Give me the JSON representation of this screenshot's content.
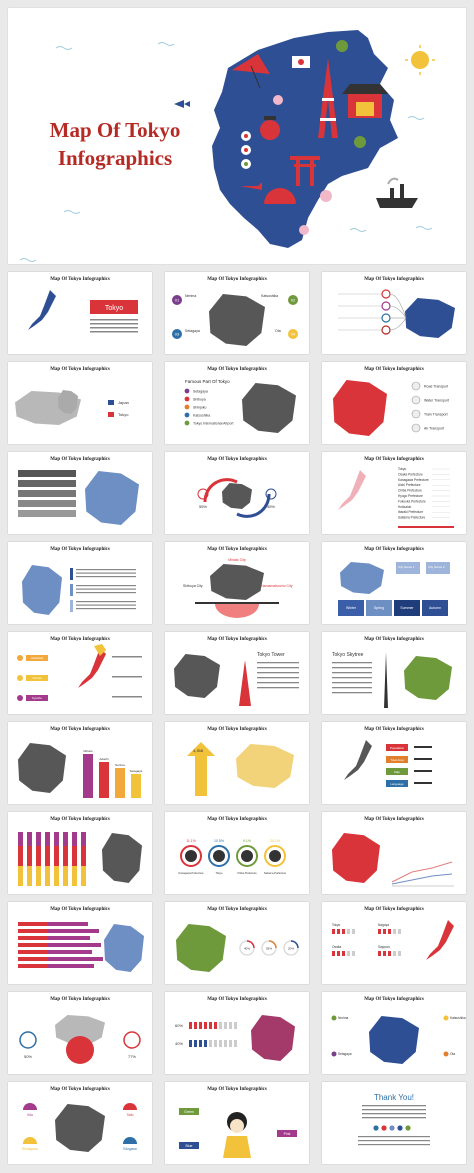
{
  "hero": {
    "title": "Map Of Tokyo Infographics"
  },
  "slide_title": "Map Of Tokyo Infographics",
  "slides": [
    {
      "id": "s1",
      "labels": [
        "Tokyo"
      ]
    },
    {
      "id": "s2",
      "labels": [
        "Nerima",
        "Katsushika",
        "Setagaya",
        "Ota",
        "01",
        "02",
        "03",
        "04"
      ]
    },
    {
      "id": "s3",
      "labels": []
    },
    {
      "id": "s4",
      "labels": [
        "Japan",
        "Tokyo"
      ]
    },
    {
      "id": "s5",
      "labels": [
        "Famous Part Of Tokyo",
        "Setagaya",
        "Shibuya",
        "Shinjuku",
        "Katsushika",
        "Tokyo International Airport"
      ]
    },
    {
      "id": "s6",
      "labels": [
        "Road Transport",
        "Water Transport",
        "Train Transport",
        "Air Transport"
      ]
    },
    {
      "id": "s7",
      "labels": []
    },
    {
      "id": "s8",
      "labels": [
        "55%",
        "45%"
      ]
    },
    {
      "id": "s9",
      "labels": [
        "Tokyo",
        "Osaka Prefecture",
        "Kanagawa Prefecture",
        "Aichi Prefecture",
        "Chiba Prefecture",
        "Hyogo Prefecture",
        "Fukuoka Prefecture",
        "Hokkaido",
        "Ibaraki Prefecture",
        "Saitama Prefecture"
      ]
    },
    {
      "id": "s10",
      "labels": []
    },
    {
      "id": "s11",
      "labels": [
        "Minato City",
        "Shibuya City",
        "Hamamatsucho City"
      ]
    },
    {
      "id": "s12",
      "labels": [
        "City Name 1",
        "City Name 2",
        "Winter",
        "Spring",
        "Summer",
        "Autumn"
      ]
    },
    {
      "id": "s13",
      "labels": [
        "Hokkaido",
        "Tohoku",
        "Kyushu"
      ]
    },
    {
      "id": "s14",
      "labels": [
        "Tokyo Tower"
      ]
    },
    {
      "id": "s15",
      "labels": [
        "Tokyo Skytree"
      ]
    },
    {
      "id": "s16",
      "labels": [
        "Minato",
        "Adachi",
        "Nerima",
        "Setagaya"
      ]
    },
    {
      "id": "s17",
      "labels": [
        "4,358"
      ]
    },
    {
      "id": "s18",
      "labels": [
        "Population",
        "Total Area",
        "Map",
        "Language"
      ]
    },
    {
      "id": "s19",
      "labels": []
    },
    {
      "id": "s20",
      "labels": [
        "11.1%",
        "10.5%",
        "9.1%",
        "20.1%",
        "Kanagawa Prefecture",
        "Tokyo",
        "Chiba Prefecture",
        "Saitama Prefecture"
      ]
    },
    {
      "id": "s21",
      "labels": []
    },
    {
      "id": "s22",
      "labels": []
    },
    {
      "id": "s23",
      "labels": [
        "40%",
        "55%",
        "20%"
      ]
    },
    {
      "id": "s24",
      "labels": [
        "Tokyo",
        "Nagoya",
        "Osaka",
        "Sapporo"
      ]
    },
    {
      "id": "s25",
      "labels": [
        "50%",
        "77%"
      ]
    },
    {
      "id": "s26",
      "labels": [
        "60%",
        "40%"
      ]
    },
    {
      "id": "s27",
      "labels": [
        "Nerima",
        "Katsushika",
        "Setagaya",
        "Ota"
      ]
    },
    {
      "id": "s28",
      "labels": [
        "Kita",
        "Taito",
        "Shinagawa",
        "Edogawa"
      ]
    },
    {
      "id": "s29",
      "labels": [
        "Green",
        "Blue",
        "Pink"
      ]
    },
    {
      "id": "s30",
      "labels": [
        "Thank You!"
      ]
    }
  ],
  "colors": {
    "navy": "#2f4f94",
    "red": "#d9343a",
    "grey": "#575757",
    "yellow": "#f2c23a",
    "green": "#6f9a3c",
    "pink": "#e8596b",
    "title_red": "#b52a25"
  }
}
